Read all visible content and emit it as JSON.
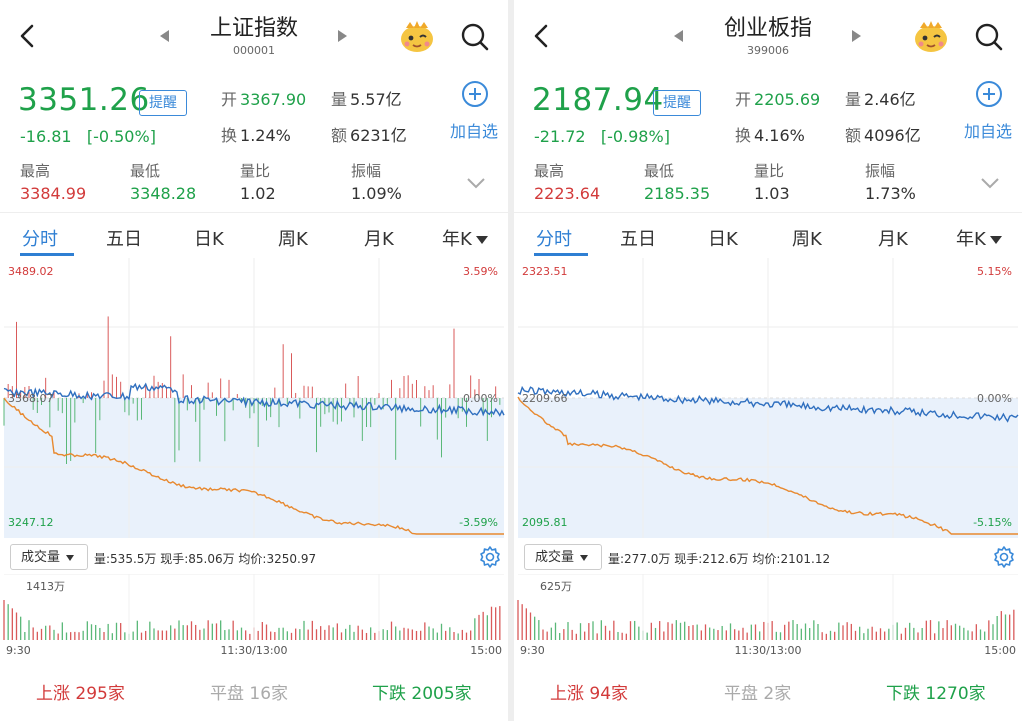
{
  "colors": {
    "up": "#d23a3a",
    "down": "#1fa14a",
    "accent": "#2f7fd3",
    "avg": "#e8892f",
    "line": "#2f6fbf"
  },
  "panels": [
    {
      "title": "上证指数",
      "code": "000001",
      "price": "3351.26",
      "remind": "提醒",
      "change": "-16.81",
      "change_pct": "[-0.50%]",
      "open_label": "开",
      "open": "3367.90",
      "vol_label": "量",
      "vol": "5.57亿",
      "turn_label": "换",
      "turn": "1.24%",
      "amt_label": "额",
      "amt": "6231亿",
      "add_label": "加自选",
      "stats": [
        {
          "label": "最高",
          "value": "3384.99",
          "tone": "r"
        },
        {
          "label": "最低",
          "value": "3348.28",
          "tone": "g"
        },
        {
          "label": "量比",
          "value": "1.02",
          "tone": ""
        },
        {
          "label": "振幅",
          "value": "1.09%",
          "tone": ""
        }
      ],
      "tabs": [
        "分时",
        "五日",
        "日K",
        "周K",
        "月K",
        "年K"
      ],
      "chart_labels": {
        "top": "3489.02",
        "top_pct": "3.59%",
        "mid": "3368.07",
        "mid_pct": "0.00%",
        "bottom": "3247.12",
        "bottom_pct": "-3.59%"
      },
      "vol_dropdown": "成交量",
      "vol_info": "量:535.5万  现手:85.06万  均价:3250.97",
      "vol_max": "1413万",
      "time_labels": [
        "9:30",
        "11:30/13:00",
        "15:00"
      ],
      "footer": {
        "up_label": "上涨",
        "up": "295家",
        "flat_label": "平盘",
        "flat": "16家",
        "down_label": "下跌",
        "down": "2005家"
      }
    },
    {
      "title": "创业板指",
      "code": "399006",
      "price": "2187.94",
      "remind": "提醒",
      "change": "-21.72",
      "change_pct": "[-0.98%]",
      "open_label": "开",
      "open": "2205.69",
      "vol_label": "量",
      "vol": "2.46亿",
      "turn_label": "换",
      "turn": "4.16%",
      "amt_label": "额",
      "amt": "4096亿",
      "add_label": "加自选",
      "stats": [
        {
          "label": "最高",
          "value": "2223.64",
          "tone": "r"
        },
        {
          "label": "最低",
          "value": "2185.35",
          "tone": "g"
        },
        {
          "label": "量比",
          "value": "1.03",
          "tone": ""
        },
        {
          "label": "振幅",
          "value": "1.73%",
          "tone": ""
        }
      ],
      "tabs": [
        "分时",
        "五日",
        "日K",
        "周K",
        "月K",
        "年K"
      ],
      "chart_labels": {
        "top": "2323.51",
        "top_pct": "5.15%",
        "mid": "2209.66",
        "mid_pct": "0.00%",
        "bottom": "2095.81",
        "bottom_pct": "-5.15%"
      },
      "vol_dropdown": "成交量",
      "vol_info": "量:277.0万  现手:212.6万  均价:2101.12",
      "vol_max": "625万",
      "time_labels": [
        "9:30",
        "11:30/13:00",
        "15:00"
      ],
      "footer": {
        "up_label": "上涨",
        "up": "94家",
        "flat_label": "平盘",
        "flat": "2家",
        "down_label": "下跌",
        "down": "1270家"
      }
    }
  ]
}
